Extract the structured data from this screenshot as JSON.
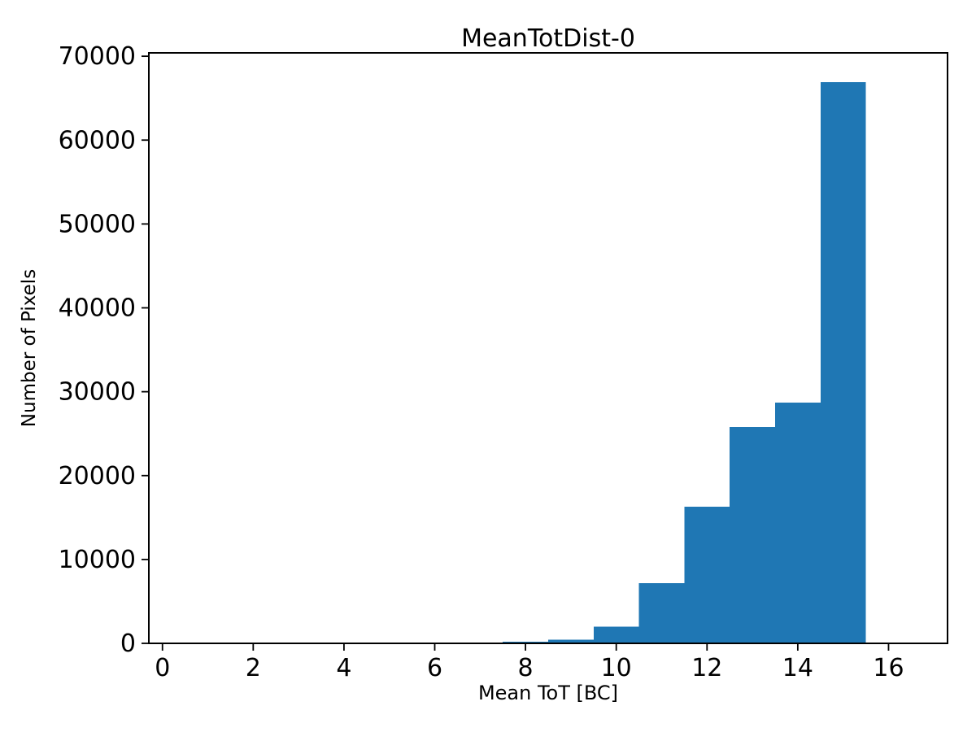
{
  "chart_data": {
    "type": "bar",
    "subtype": "histogram",
    "title": "MeanTotDist-0",
    "xlabel": "Mean ToT [BC]",
    "ylabel": "Number of Pixels",
    "bar_color": "#1f77b4",
    "axis_color": "#000000",
    "background_color": "#ffffff",
    "grid": false,
    "legend": null,
    "xlim": [
      -0.3,
      17.3
    ],
    "ylim": [
      0,
      70400
    ],
    "x_ticks": [
      0,
      2,
      4,
      6,
      8,
      10,
      12,
      14,
      16
    ],
    "y_ticks": [
      0,
      10000,
      20000,
      30000,
      40000,
      50000,
      60000,
      70000
    ],
    "bin_width": 1,
    "bins": [
      {
        "center": 8,
        "count": 200
      },
      {
        "center": 9,
        "count": 450
      },
      {
        "center": 10,
        "count": 2000
      },
      {
        "center": 11,
        "count": 7200
      },
      {
        "center": 12,
        "count": 16300
      },
      {
        "center": 13,
        "count": 25800
      },
      {
        "center": 14,
        "count": 28700
      },
      {
        "center": 15,
        "count": 66900
      }
    ]
  }
}
